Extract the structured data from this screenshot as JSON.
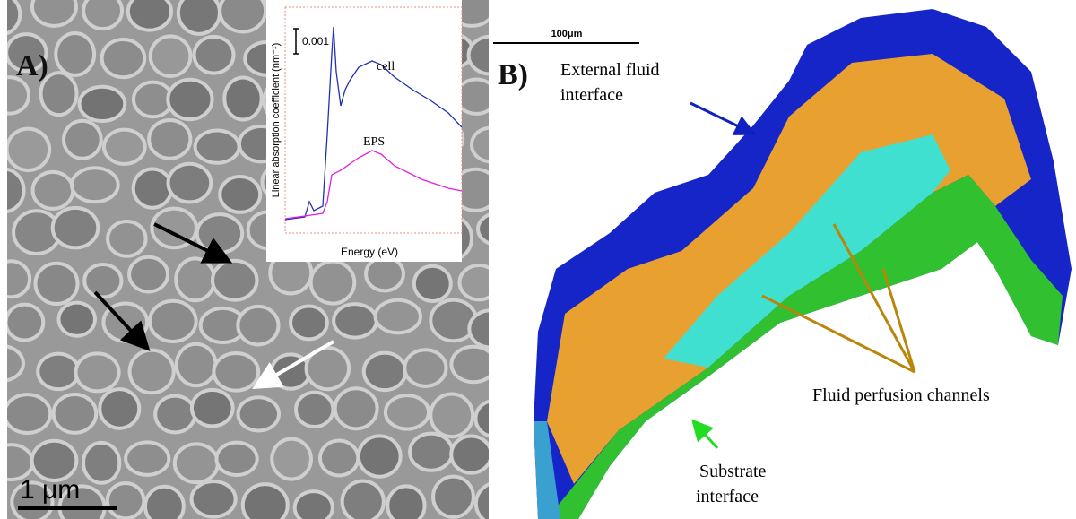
{
  "panel_a": {
    "label": "A)",
    "scale_bar": "1 μm",
    "inset": {
      "y_label": "Linear absorption coefficient (nm⁻¹)",
      "scale": "0.001",
      "series": [
        "cell",
        "EPS"
      ],
      "x_label": "Energy (eV)"
    }
  },
  "panel_b": {
    "label": "B)",
    "scale_bar": "100μm",
    "annotations": {
      "external": [
        "External fluid",
        "interface"
      ],
      "channels": "Fluid perfusion channels",
      "substrate": [
        "Substrate",
        "interface"
      ]
    }
  }
}
